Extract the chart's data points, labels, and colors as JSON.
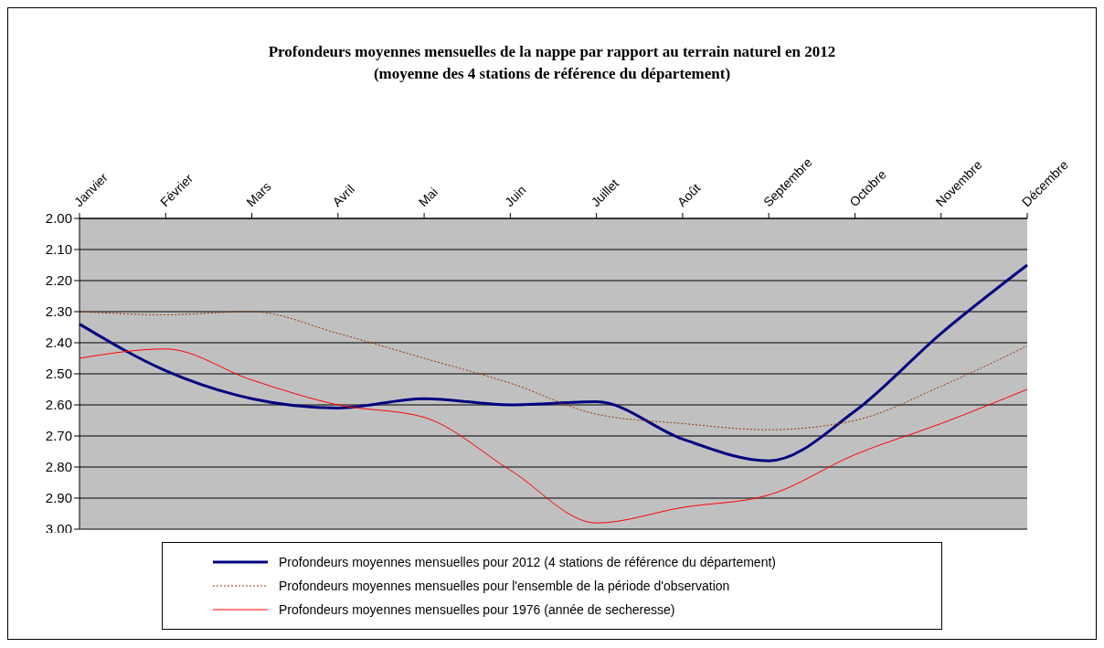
{
  "chart_data": {
    "type": "line",
    "title": "Profondeurs moyennes mensuelles de la nappe par rapport  au terrain naturel en 2012",
    "subtitle": "(moyenne des 4 stations de référence du département)",
    "categories": [
      "Janvier",
      "Février",
      "Mars",
      "Avril",
      "Mai",
      "Juin",
      "Juillet",
      "Août",
      "Septembre",
      "Octobre",
      "Novembre",
      "Décembre"
    ],
    "series": [
      {
        "name": "Profondeurs moyennes mensuelles pour 2012 (4 stations de référence du département)",
        "color": "#000080",
        "line_style": "solid",
        "values": [
          2.34,
          2.49,
          2.58,
          2.61,
          2.58,
          2.6,
          2.59,
          2.71,
          2.78,
          2.62,
          2.37,
          2.15
        ]
      },
      {
        "name": "Profondeurs moyennes mensuelles pour l'ensemble de la période d'observation",
        "color": "#993300",
        "line_style": "dotted",
        "values": [
          2.3,
          2.31,
          2.3,
          2.37,
          2.45,
          2.53,
          2.63,
          2.66,
          2.68,
          2.65,
          2.54,
          2.41
        ]
      },
      {
        "name": "Profondeurs moyennes mensuelles pour 1976 (année de secheresse)",
        "color": "#ff0000",
        "line_style": "solid",
        "values": [
          2.45,
          2.42,
          2.52,
          2.6,
          2.64,
          2.81,
          2.98,
          2.93,
          2.89,
          2.76,
          2.66,
          2.55
        ]
      }
    ],
    "ylim": [
      3.0,
      2.0
    ],
    "yticks": [
      {
        "value": 2.0,
        "label": "2.00"
      },
      {
        "value": 2.1,
        "label": "2.10"
      },
      {
        "value": 2.2,
        "label": "2.20"
      },
      {
        "value": 2.3,
        "label": "2.30"
      },
      {
        "value": 2.4,
        "label": "2.40"
      },
      {
        "value": 2.5,
        "label": "2.50"
      },
      {
        "value": 2.6,
        "label": "2.60"
      },
      {
        "value": 2.7,
        "label": "2.70"
      },
      {
        "value": 2.8,
        "label": "2.80"
      },
      {
        "value": 2.9,
        "label": "2.90"
      },
      {
        "value": 3.0,
        "label": "3.00"
      }
    ],
    "grid": "y",
    "legend": "bottom",
    "marker": "none"
  }
}
